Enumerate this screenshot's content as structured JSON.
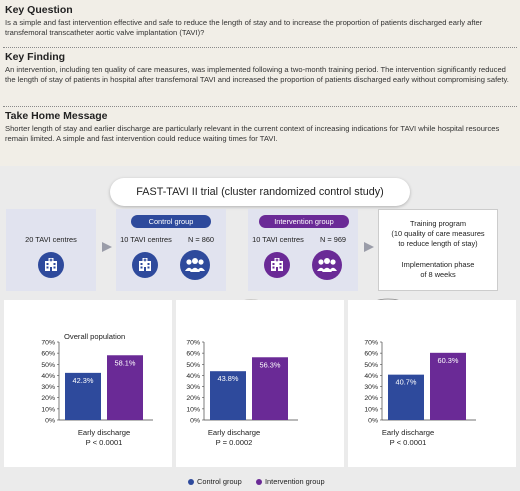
{
  "sections": {
    "key_question": {
      "heading": "Key Question",
      "text": "Is a simple and fast intervention effective and safe to reduce the length of stay and to increase the proportion of patients discharged early after transfemoral transcatheter aortic valve implantation (TAVI)?"
    },
    "key_finding": {
      "heading": "Key Finding",
      "text": "An intervention, including ten quality of care measures, was implemented following a two-month training period. The intervention significantly reduced the length of stay of patients in hospital after transfemoral TAVI  and increased the proportion of patients discharged early without compromising safety."
    },
    "take_home": {
      "heading": "Take Home Message",
      "text": "Shorter length of stay and earlier discharge are particularly relevant in the current context of increasing indications for TAVI while hospital resources remain limited. A simple and fast intervention could reduce waiting times for TAVI."
    }
  },
  "trial": {
    "title": "FAST-TAVI II trial (cluster randomized control study)",
    "centres_total": "20 TAVI centres",
    "control": {
      "pill": "Control group",
      "centres": "10 TAVI centres",
      "n": "N = 860"
    },
    "intervention": {
      "pill": "Intervention group",
      "centres": "10 TAVI centres",
      "n": "N = 969"
    },
    "training": {
      "title": "Training program",
      "detail_line1": "(10 quality of care measures",
      "detail_line2": "to reduce length of stay)",
      "phase_line1": "Implementation phase",
      "phase_line2": "of 8 weeks"
    }
  },
  "icons": [
    "hospital-icon",
    "people-group-icon",
    "valve-balloon-icon",
    "valve-self-expanding-icon",
    "arrow-right-icon"
  ],
  "colors": {
    "control": "#2e4a9c",
    "intervention": "#6a2a96",
    "top_bg": "#f1eee7",
    "bottom_bg": "#ebebeb",
    "box_bg": "#e1e3ef"
  },
  "chart_data": [
    {
      "type": "bar",
      "title": "Overall population",
      "categories": [
        "Early discharge"
      ],
      "series": [
        {
          "name": "Control group",
          "values": [
            42.3
          ],
          "label": "42.3%"
        },
        {
          "name": "Intervention group",
          "values": [
            58.1
          ],
          "label": "58.1%"
        }
      ],
      "yticks": [
        "0%",
        "10%",
        "20%",
        "30%",
        "40%",
        "50%",
        "60%",
        "70%"
      ],
      "ylim": [
        0,
        70
      ],
      "xlabel": "Early discharge",
      "pvalue": "P < 0.0001"
    },
    {
      "type": "bar",
      "title": "",
      "categories": [
        "Early discharge"
      ],
      "series": [
        {
          "name": "Control group",
          "values": [
            43.8
          ],
          "label": "43.8%"
        },
        {
          "name": "Intervention group",
          "values": [
            56.3
          ],
          "label": "56.3%"
        }
      ],
      "yticks": [
        "0%",
        "10%",
        "20%",
        "30%",
        "40%",
        "50%",
        "60%",
        "70%"
      ],
      "ylim": [
        0,
        70
      ],
      "xlabel": "Early discharge",
      "pvalue": "P = 0.0002"
    },
    {
      "type": "bar",
      "title": "",
      "categories": [
        "Early discharge"
      ],
      "series": [
        {
          "name": "Control group",
          "values": [
            40.7
          ],
          "label": "40.7%"
        },
        {
          "name": "Intervention group",
          "values": [
            60.3
          ],
          "label": "60.3%"
        }
      ],
      "yticks": [
        "0%",
        "10%",
        "20%",
        "30%",
        "40%",
        "50%",
        "60%",
        "70%"
      ],
      "ylim": [
        0,
        70
      ],
      "xlabel": "Early discharge",
      "pvalue": "P < 0.0001"
    }
  ],
  "legend": {
    "control": "Control group",
    "intervention": "Intervention group"
  }
}
